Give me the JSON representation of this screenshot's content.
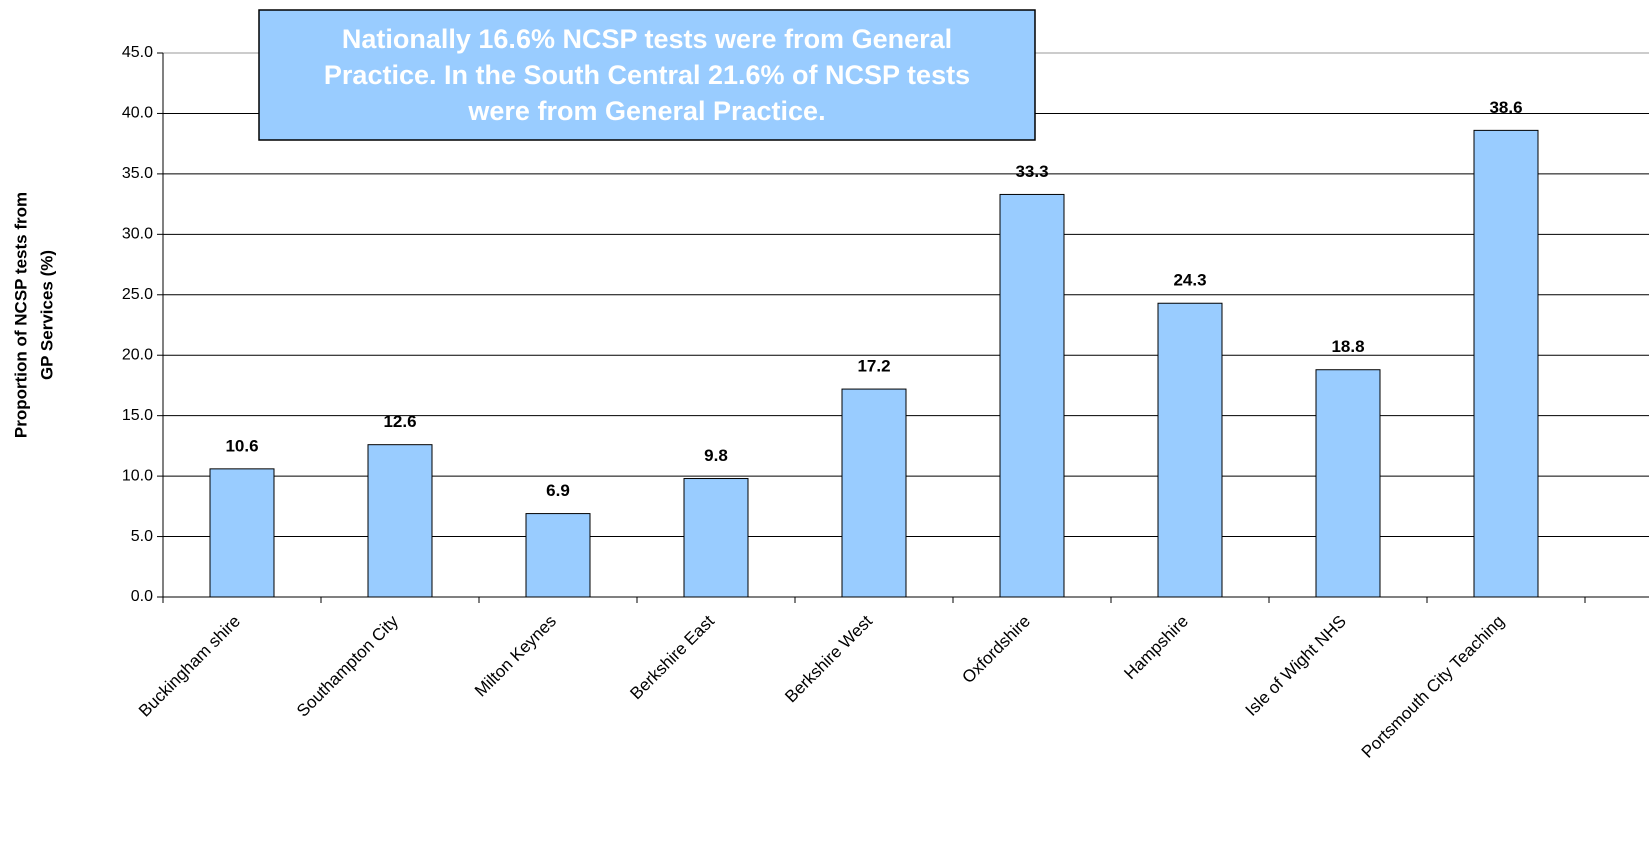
{
  "chart_data": {
    "type": "bar",
    "annotation": [
      "Nationally 16.6% NCSP  tests were from General",
      "Practice. In the South Central 21.6% of NCSP tests",
      "were from General Practice."
    ],
    "y_label": [
      "Proportion of NCSP tests from",
      "GP Services (%)"
    ],
    "categories": [
      "Buckingham shire",
      "Southampton City",
      "Milton Keynes",
      "Berkshire East",
      "Berkshire West",
      "Oxfordshire",
      "Hampshire",
      "Isle of Wight NHS",
      "Portsmouth City Teaching"
    ],
    "values": [
      10.6,
      12.6,
      6.9,
      9.8,
      17.2,
      33.3,
      24.3,
      18.8,
      38.6
    ],
    "color": "#99ccff",
    "ylim": [
      0,
      45
    ],
    "yticks": [
      {
        "value": 0,
        "label": "0.0"
      },
      {
        "value": 5,
        "label": "5.0"
      },
      {
        "value": 10,
        "label": "10.0"
      },
      {
        "value": 15,
        "label": "15.0"
      },
      {
        "value": 20,
        "label": "20.0"
      },
      {
        "value": 25,
        "label": "25.0"
      },
      {
        "value": 30,
        "label": "30.0"
      },
      {
        "value": 35,
        "label": "35.0"
      },
      {
        "value": 40,
        "label": "40.0"
      },
      {
        "value": 45,
        "label": "45.0"
      }
    ],
    "grid": true
  }
}
